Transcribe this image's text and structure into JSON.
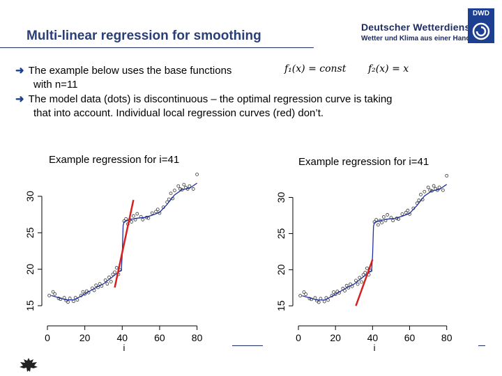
{
  "header": {
    "title": "Multi-linear regression for smoothing",
    "logo_name": "Deutscher Wetterdienst",
    "logo_tagline": "Wetter und Klima aus einer Hand",
    "logo_badge": "DWD"
  },
  "bullets": {
    "b1_text": "The example below uses the base functions",
    "b1_formula1": "f₁(x) = const",
    "b1_formula2": "f₂(x) = x",
    "b1_cont": "with n=11",
    "b2_line1": "The model data (dots) is discontinuous – the optimal regression curve is taking",
    "b2_line2": "that into account. Individual local regression curves (red) don’t."
  },
  "chart_data": [
    {
      "type": "scatter",
      "title": "Example regression for i=41",
      "xlabel": "i",
      "ylabel": "",
      "xlim": [
        0,
        85
      ],
      "ylim": [
        13,
        34
      ],
      "xticks": [
        0,
        20,
        40,
        60,
        80
      ],
      "yticks": [
        15,
        20,
        25,
        30
      ],
      "series": [
        {
          "points": [
            [
              1,
              16.4
            ],
            [
              3,
              16.9
            ],
            [
              4,
              16.6
            ],
            [
              6,
              16.0
            ],
            [
              7,
              15.9
            ],
            [
              9,
              16.1
            ],
            [
              10,
              15.7
            ],
            [
              11,
              15.5
            ],
            [
              12,
              16.0
            ],
            [
              14,
              15.6
            ],
            [
              15,
              16.1
            ],
            [
              16,
              15.8
            ],
            [
              18,
              16.4
            ],
            [
              19,
              16.9
            ],
            [
              20,
              16.6
            ],
            [
              21,
              17.0
            ],
            [
              22,
              16.8
            ],
            [
              24,
              17.4
            ],
            [
              25,
              17.1
            ],
            [
              26,
              17.8
            ],
            [
              27,
              17.5
            ],
            [
              28,
              18.0
            ],
            [
              29,
              17.7
            ],
            [
              31,
              18.5
            ],
            [
              32,
              18.0
            ],
            [
              33,
              18.9
            ],
            [
              34,
              18.3
            ],
            [
              35,
              19.3
            ],
            [
              36,
              19.6
            ],
            [
              37,
              20.2
            ],
            [
              38,
              19.3
            ],
            [
              39,
              19.9
            ],
            [
              41,
              26.6
            ],
            [
              42,
              26.9
            ],
            [
              43,
              26.2
            ],
            [
              44,
              26.8
            ],
            [
              45,
              26.5
            ],
            [
              46,
              27.3
            ],
            [
              47,
              26.8
            ],
            [
              48,
              27.6
            ],
            [
              50,
              27.2
            ],
            [
              51,
              26.8
            ],
            [
              53,
              27.1
            ],
            [
              54,
              27.0
            ],
            [
              56,
              27.7
            ],
            [
              58,
              27.9
            ],
            [
              59,
              28.2
            ],
            [
              60,
              27.7
            ],
            [
              62,
              28.5
            ],
            [
              64,
              29.2
            ],
            [
              65,
              29.6
            ],
            [
              66,
              30.4
            ],
            [
              67,
              29.7
            ],
            [
              68,
              30.8
            ],
            [
              70,
              31.4
            ],
            [
              71,
              31.0
            ],
            [
              72,
              30.9
            ],
            [
              73,
              31.6
            ],
            [
              74,
              31.2
            ],
            [
              75,
              31.0
            ],
            [
              76,
              31.4
            ],
            [
              78,
              31.0
            ],
            [
              80,
              33.0
            ]
          ],
          "smooth_curve": [
            [
              2,
              16.4
            ],
            [
              6,
              16.1
            ],
            [
              10,
              15.8
            ],
            [
              14,
              15.8
            ],
            [
              18,
              16.3
            ],
            [
              22,
              16.9
            ],
            [
              26,
              17.5
            ],
            [
              30,
              18.0
            ],
            [
              34,
              18.8
            ],
            [
              38,
              19.6
            ],
            [
              39.5,
              19.9
            ],
            [
              40,
              22.0
            ],
            [
              40.5,
              26.0
            ],
            [
              41,
              26.5
            ],
            [
              44,
              26.8
            ],
            [
              48,
              27.0
            ],
            [
              52,
              27.1
            ],
            [
              56,
              27.4
            ],
            [
              60,
              27.8
            ],
            [
              64,
              28.9
            ],
            [
              68,
              30.2
            ],
            [
              72,
              30.9
            ],
            [
              76,
              31.1
            ],
            [
              80,
              31.8
            ]
          ],
          "local_line": [
            [
              36,
              17.5
            ],
            [
              46,
              29.5
            ]
          ]
        }
      ]
    },
    {
      "type": "scatter",
      "title": "Example regression for i=41",
      "xlabel": "i",
      "ylabel": "",
      "xlim": [
        0,
        85
      ],
      "ylim": [
        13,
        34
      ],
      "xticks": [
        0,
        20,
        40,
        60,
        80
      ],
      "yticks": [
        15,
        20,
        25,
        30
      ],
      "series": [
        {
          "points": [
            [
              1,
              16.4
            ],
            [
              3,
              16.9
            ],
            [
              4,
              16.6
            ],
            [
              6,
              16.0
            ],
            [
              7,
              15.9
            ],
            [
              9,
              16.1
            ],
            [
              10,
              15.7
            ],
            [
              11,
              15.5
            ],
            [
              12,
              16.0
            ],
            [
              14,
              15.6
            ],
            [
              15,
              16.1
            ],
            [
              16,
              15.8
            ],
            [
              18,
              16.4
            ],
            [
              19,
              16.9
            ],
            [
              20,
              16.6
            ],
            [
              21,
              17.0
            ],
            [
              22,
              16.8
            ],
            [
              24,
              17.4
            ],
            [
              25,
              17.1
            ],
            [
              26,
              17.8
            ],
            [
              27,
              17.5
            ],
            [
              28,
              18.0
            ],
            [
              29,
              17.7
            ],
            [
              31,
              18.5
            ],
            [
              32,
              18.0
            ],
            [
              33,
              18.9
            ],
            [
              34,
              18.3
            ],
            [
              35,
              19.3
            ],
            [
              36,
              19.6
            ],
            [
              37,
              20.2
            ],
            [
              38,
              19.3
            ],
            [
              39,
              19.9
            ],
            [
              41,
              26.6
            ],
            [
              42,
              26.9
            ],
            [
              43,
              26.2
            ],
            [
              44,
              26.8
            ],
            [
              45,
              26.5
            ],
            [
              46,
              27.3
            ],
            [
              47,
              26.8
            ],
            [
              48,
              27.6
            ],
            [
              50,
              27.2
            ],
            [
              51,
              26.8
            ],
            [
              53,
              27.1
            ],
            [
              54,
              27.0
            ],
            [
              56,
              27.7
            ],
            [
              58,
              27.9
            ],
            [
              59,
              28.2
            ],
            [
              60,
              27.7
            ],
            [
              62,
              28.5
            ],
            [
              64,
              29.2
            ],
            [
              65,
              29.6
            ],
            [
              66,
              30.4
            ],
            [
              67,
              29.7
            ],
            [
              68,
              30.8
            ],
            [
              70,
              31.4
            ],
            [
              71,
              31.0
            ],
            [
              72,
              30.9
            ],
            [
              73,
              31.6
            ],
            [
              74,
              31.2
            ],
            [
              75,
              31.0
            ],
            [
              76,
              31.4
            ],
            [
              78,
              31.0
            ],
            [
              80,
              33.0
            ]
          ],
          "smooth_curve": [
            [
              2,
              16.4
            ],
            [
              6,
              16.1
            ],
            [
              10,
              15.8
            ],
            [
              14,
              15.8
            ],
            [
              18,
              16.3
            ],
            [
              22,
              16.9
            ],
            [
              26,
              17.5
            ],
            [
              30,
              18.0
            ],
            [
              34,
              18.8
            ],
            [
              38,
              19.6
            ],
            [
              39.5,
              19.9
            ],
            [
              40,
              22.0
            ],
            [
              40.5,
              26.0
            ],
            [
              41,
              26.5
            ],
            [
              44,
              26.8
            ],
            [
              48,
              27.0
            ],
            [
              52,
              27.1
            ],
            [
              56,
              27.4
            ],
            [
              60,
              27.8
            ],
            [
              64,
              28.9
            ],
            [
              68,
              30.2
            ],
            [
              72,
              30.9
            ],
            [
              76,
              31.1
            ],
            [
              80,
              31.8
            ]
          ],
          "local_line": [
            [
              31,
              15.0
            ],
            [
              40,
              21.4
            ]
          ]
        }
      ]
    }
  ],
  "colors": {
    "title": "#2a3f78",
    "accent": "#1c3f91",
    "smooth": "#1f2f9e",
    "local": "#d62020"
  }
}
